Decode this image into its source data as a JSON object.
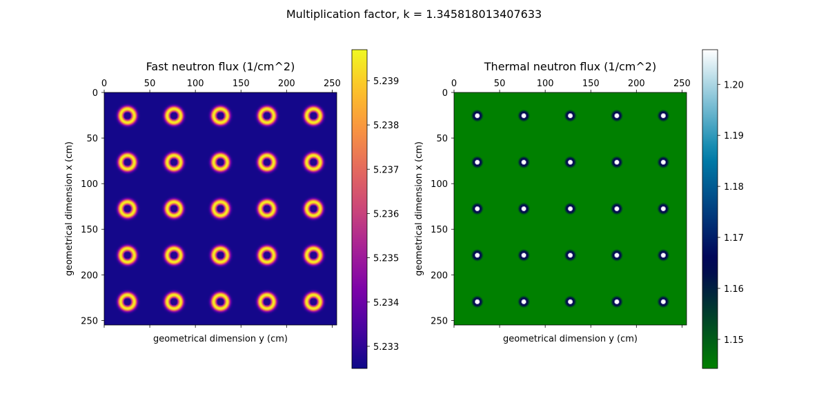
{
  "suptitle": "Multiplication factor, k = 1.345818013407633",
  "chart_data": [
    {
      "type": "heatmap",
      "title": "Fast neutron flux (1/cm^2)",
      "xlabel": "geometrical dimension y (cm)",
      "ylabel": "geometrical dimension x (cm)",
      "x_range": [
        0,
        255
      ],
      "y_range": [
        0,
        255
      ],
      "x_ticks": [
        0,
        50,
        100,
        150,
        200,
        250
      ],
      "y_ticks": [
        0,
        50,
        100,
        150,
        200,
        250
      ],
      "x_axis_position": "top",
      "y_axis_inverted": true,
      "colormap": "plasma",
      "colorbar_range": [
        5.2325,
        5.2397
      ],
      "colorbar_ticks": [
        5.233,
        5.234,
        5.235,
        5.236,
        5.237,
        5.238,
        5.239
      ],
      "pattern": {
        "centers_x": [
          25.5,
          76.5,
          127.5,
          178.5,
          229.5
        ],
        "centers_y": [
          25.5,
          76.5,
          127.5,
          178.5,
          229.5
        ],
        "background": 5.2326,
        "ring_peak": 5.2397,
        "ring_radius": 7.5,
        "ring_width": 3.0,
        "center_value": 5.2328,
        "center_radius": 4.0
      }
    },
    {
      "type": "heatmap",
      "title": "Thermal neutron flux (1/cm^2)",
      "xlabel": "geometrical dimension y (cm)",
      "ylabel": "geometrical dimension x (cm)",
      "x_range": [
        0,
        255
      ],
      "y_range": [
        0,
        255
      ],
      "x_ticks": [
        0,
        50,
        100,
        150,
        200,
        250
      ],
      "y_ticks": [
        0,
        50,
        100,
        150,
        200,
        250
      ],
      "x_axis_position": "top",
      "y_axis_inverted": true,
      "colormap": "ocean",
      "colorbar_range": [
        1.1443,
        1.2068
      ],
      "colorbar_ticks": [
        1.15,
        1.16,
        1.17,
        1.18,
        1.19,
        1.2
      ],
      "pattern": {
        "centers_x": [
          25.5,
          76.5,
          127.5,
          178.5,
          229.5
        ],
        "centers_y": [
          25.5,
          76.5,
          127.5,
          178.5,
          229.5
        ],
        "background": 1.1443,
        "peak": 1.2068,
        "core_radius": 2.5,
        "halo_value": 1.166,
        "halo_radius": 6.5
      }
    }
  ]
}
